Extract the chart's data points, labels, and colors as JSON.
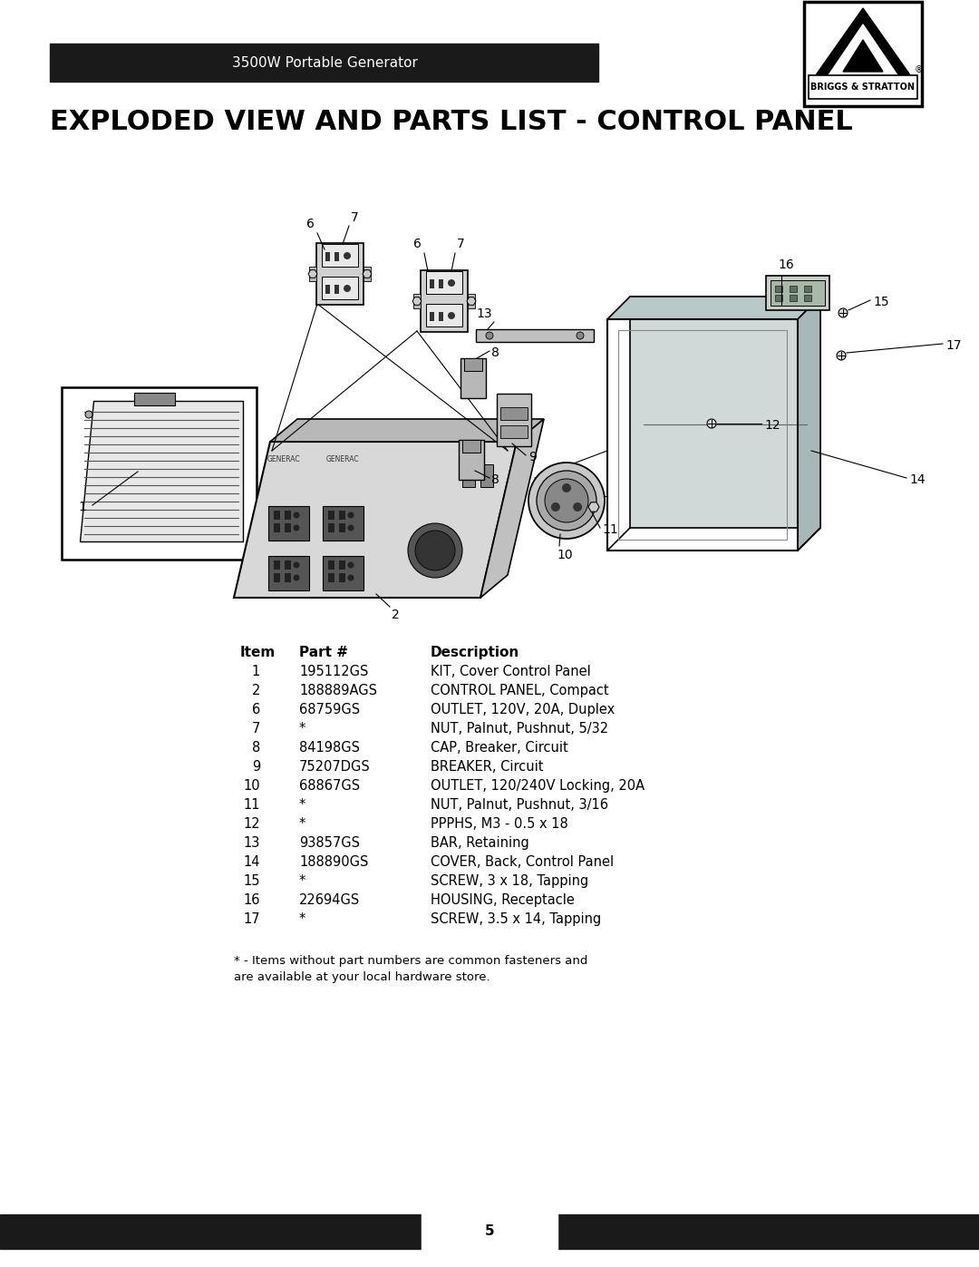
{
  "page_bg": "#ffffff",
  "header_bar_color": "#1a1a1a",
  "header_text": "3500W Portable Generator",
  "header_text_color": "#ffffff",
  "header_text_size": 11,
  "title": "EXPLODED VIEW AND PARTS LIST - CONTROL PANEL",
  "title_fontsize": 22,
  "footer_bar_color": "#1a1a1a",
  "footer_text": "5",
  "footer_text_color": "#ffffff",
  "footer_text_size": 11,
  "parts": [
    [
      "1",
      "195112GS",
      "KIT, Cover Control Panel"
    ],
    [
      "2",
      "188889AGS",
      "CONTROL PANEL, Compact"
    ],
    [
      "6",
      "68759GS",
      "OUTLET, 120V, 20A, Duplex"
    ],
    [
      "7",
      "*",
      "NUT, Palnut, Pushnut, 5/32"
    ],
    [
      "8",
      "84198GS",
      "CAP, Breaker, Circuit"
    ],
    [
      "9",
      "75207DGS",
      "BREAKER, Circuit"
    ],
    [
      "10",
      "68867GS",
      "OUTLET, 120/240V Locking, 20A"
    ],
    [
      "11",
      "*",
      "NUT, Palnut, Pushnut, 3/16"
    ],
    [
      "12",
      "*",
      "PPPHS, M3 - 0.5 x 18"
    ],
    [
      "13",
      "93857GS",
      "BAR, Retaining"
    ],
    [
      "14",
      "188890GS",
      "COVER, Back, Control Panel"
    ],
    [
      "15",
      "*",
      "SCREW, 3 x 18, Tapping"
    ],
    [
      "16",
      "22694GS",
      "HOUSING, Receptacle"
    ],
    [
      "17",
      "*",
      "SCREW, 3.5 x 14, Tapping"
    ]
  ],
  "footnote_line1": "* - Items without part numbers are common fasteners and",
  "footnote_line2": "are available at your local hardware store.",
  "table_header_fontsize": 11,
  "table_row_fontsize": 10.5
}
